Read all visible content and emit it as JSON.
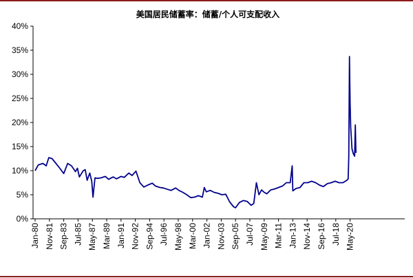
{
  "colors": {
    "rule": "#8b1a1a",
    "line": "#00008b",
    "axis": "#000000",
    "background": "#ffffff"
  },
  "chart_data": {
    "type": "line",
    "title": "美国居民储蓄率：储蓄/个人可支配收入",
    "xlabel": "",
    "ylabel": "",
    "grid": false,
    "legend": "none",
    "ylim": [
      0,
      40
    ],
    "yticks": [
      "0%",
      "5%",
      "10%",
      "15%",
      "20%",
      "25%",
      "30%",
      "35%",
      "40%"
    ],
    "xticks": [
      "Jan-80",
      "Nov-81",
      "Sep-83",
      "Jul-85",
      "May-87",
      "Mar-89",
      "Jan-91",
      "Nov-92",
      "Sep-94",
      "Jul-96",
      "May-98",
      "Mar-00",
      "Jan-02",
      "Nov-03",
      "Sep-05",
      "Jul-07",
      "May-09",
      "Mar-11",
      "Jan-13",
      "Nov-14",
      "Sep-16",
      "Jul-18",
      "May-20"
    ],
    "x_start": "1980-01",
    "series": [
      {
        "x": [
          "1980-01",
          "1980-06",
          "1981-01",
          "1981-06",
          "1981-10",
          "1982-03",
          "1982-09",
          "1983-03",
          "1983-09",
          "1984-03",
          "1984-09",
          "1985-03",
          "1985-06",
          "1985-09",
          "1986-03",
          "1986-06",
          "1986-09",
          "1987-01",
          "1987-04",
          "1987-06",
          "1987-09",
          "1988-01",
          "1988-06",
          "1989-01",
          "1989-06",
          "1990-01",
          "1990-06",
          "1991-01",
          "1991-06",
          "1992-01",
          "1992-06",
          "1992-12",
          "1993-06",
          "1993-12",
          "1994-06",
          "1995-01",
          "1995-06",
          "1996-01",
          "1996-06",
          "1997-01",
          "1997-06",
          "1998-01",
          "1998-06",
          "1998-12",
          "1999-06",
          "1999-12",
          "2000-06",
          "2000-12",
          "2001-06",
          "2001-09",
          "2001-12",
          "2002-06",
          "2002-12",
          "2003-06",
          "2003-12",
          "2004-06",
          "2004-12",
          "2005-06",
          "2005-09",
          "2006-03",
          "2006-09",
          "2007-03",
          "2007-09",
          "2008-01",
          "2008-05",
          "2008-09",
          "2009-01",
          "2009-05",
          "2009-09",
          "2010-03",
          "2010-09",
          "2011-03",
          "2011-09",
          "2012-03",
          "2012-09",
          "2012-12",
          "2013-01",
          "2013-06",
          "2013-12",
          "2014-06",
          "2014-12",
          "2015-06",
          "2015-12",
          "2016-06",
          "2016-12",
          "2017-06",
          "2017-12",
          "2018-06",
          "2018-12",
          "2019-06",
          "2019-12",
          "2020-02",
          "2020-03",
          "2020-04",
          "2020-05",
          "2020-06",
          "2020-08",
          "2020-10",
          "2020-12",
          "2021-01",
          "2021-02"
        ],
        "values": [
          10.0,
          11.2,
          11.5,
          11.0,
          12.7,
          12.5,
          11.5,
          10.5,
          9.4,
          11.5,
          11.0,
          9.8,
          10.5,
          8.7,
          10.0,
          10.2,
          8.0,
          9.5,
          7.8,
          4.5,
          8.5,
          8.4,
          8.5,
          8.8,
          8.2,
          8.7,
          8.3,
          8.8,
          8.6,
          9.5,
          9.0,
          9.9,
          7.5,
          6.6,
          7.0,
          7.4,
          6.8,
          6.5,
          6.4,
          6.1,
          5.9,
          6.4,
          5.9,
          5.5,
          5.0,
          4.4,
          4.5,
          4.8,
          4.5,
          6.5,
          5.6,
          5.9,
          5.5,
          5.3,
          5.0,
          5.1,
          3.5,
          2.5,
          2.3,
          3.4,
          3.8,
          3.6,
          2.8,
          3.2,
          7.5,
          5.0,
          6.0,
          5.5,
          5.2,
          6.0,
          6.2,
          6.5,
          6.8,
          7.5,
          7.5,
          11.0,
          5.8,
          6.3,
          6.5,
          7.5,
          7.5,
          7.8,
          7.5,
          7.0,
          6.7,
          7.3,
          7.5,
          7.8,
          7.5,
          7.5,
          8.0,
          8.3,
          12.9,
          33.7,
          24.0,
          19.0,
          14.5,
          13.5,
          13.0,
          19.5,
          13.7
        ]
      }
    ]
  }
}
